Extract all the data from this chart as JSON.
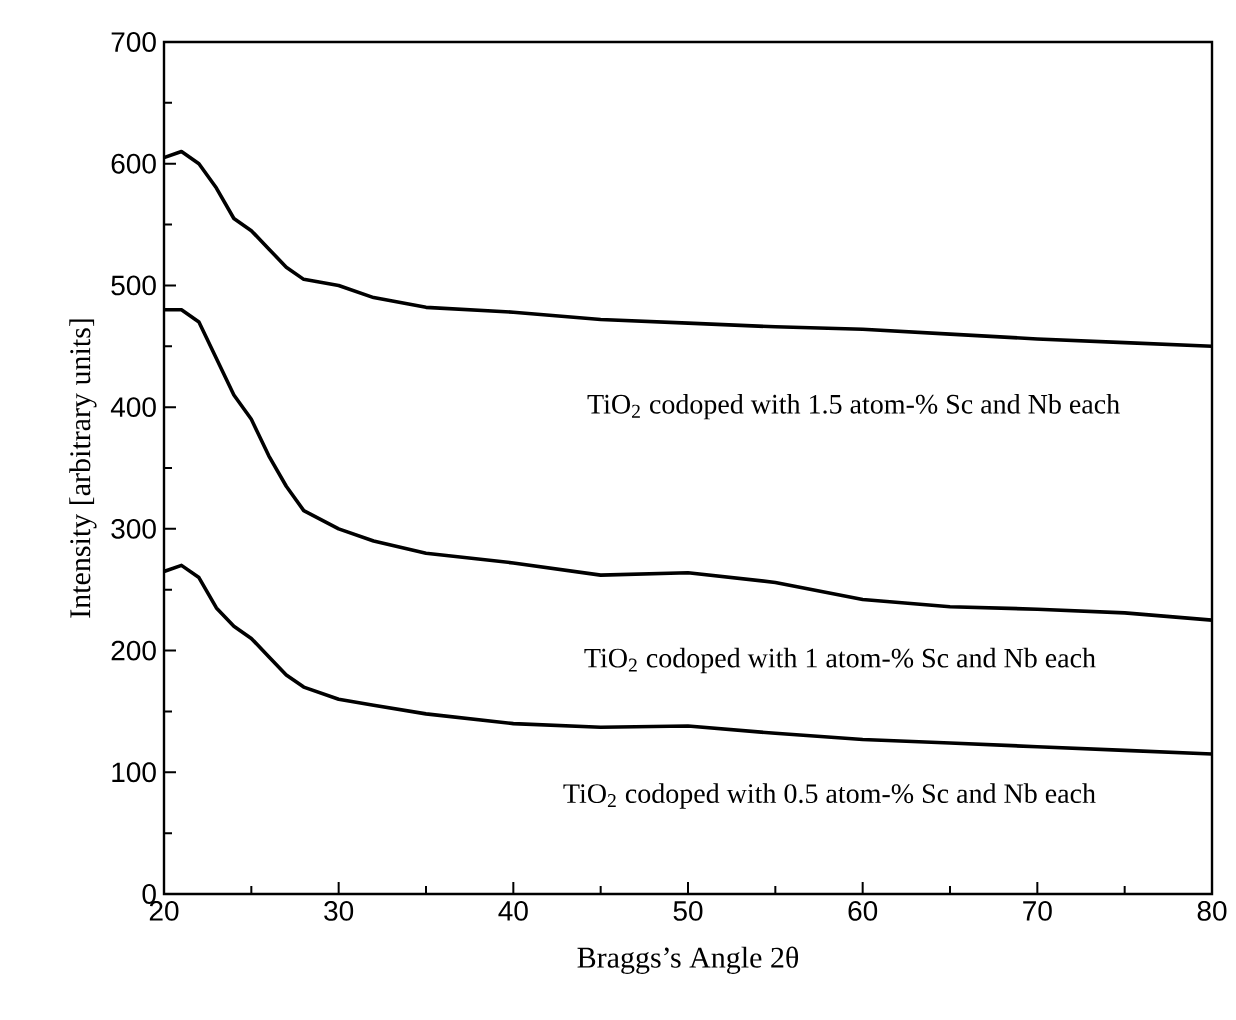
{
  "chart_data": {
    "type": "line",
    "xlabel": "Braggs’s Angle 2θ",
    "ylabel": "Intensity [arbitrary units]",
    "xlim": [
      20,
      80
    ],
    "ylim": [
      0,
      700
    ],
    "xticks": [
      20,
      30,
      40,
      50,
      60,
      70,
      80
    ],
    "yticks": [
      0,
      100,
      200,
      300,
      400,
      500,
      600,
      700
    ],
    "line_style": "solid",
    "series": [
      {
        "color": "#000000",
        "x": [
          20,
          21,
          22,
          23,
          24,
          25,
          26,
          27,
          28,
          30,
          32,
          35,
          40,
          45,
          50,
          55,
          60,
          65,
          70,
          75,
          80
        ],
        "values": [
          605,
          610,
          600,
          580,
          555,
          545,
          530,
          515,
          505,
          500,
          490,
          482,
          478,
          472,
          469,
          466,
          464,
          460,
          456,
          453,
          450
        ]
      },
      {
        "color": "#000000",
        "x": [
          20,
          21,
          22,
          23,
          24,
          25,
          26,
          27,
          28,
          30,
          32,
          35,
          40,
          45,
          50,
          55,
          60,
          65,
          70,
          75,
          80
        ],
        "values": [
          480,
          480,
          470,
          440,
          410,
          390,
          360,
          335,
          315,
          300,
          290,
          280,
          272,
          262,
          264,
          256,
          242,
          236,
          234,
          231,
          225
        ]
      },
      {
        "color": "#000000",
        "x": [
          20,
          21,
          22,
          23,
          24,
          25,
          26,
          27,
          28,
          30,
          32,
          35,
          40,
          45,
          50,
          55,
          60,
          65,
          70,
          75,
          80
        ],
        "values": [
          265,
          270,
          260,
          235,
          220,
          210,
          195,
          180,
          170,
          160,
          155,
          148,
          140,
          137,
          138,
          132,
          127,
          124,
          121,
          118,
          115
        ]
      }
    ],
    "annotations": [
      "TiO$_{2}$ codoped with 1.5 atom-% Sc and Nb each",
      "TiO$_{2}$ codoped with 1 atom-% Sc and Nb each",
      "TiO$_{2}$ codoped with 0.5 atom-% Sc and Nb each"
    ]
  }
}
